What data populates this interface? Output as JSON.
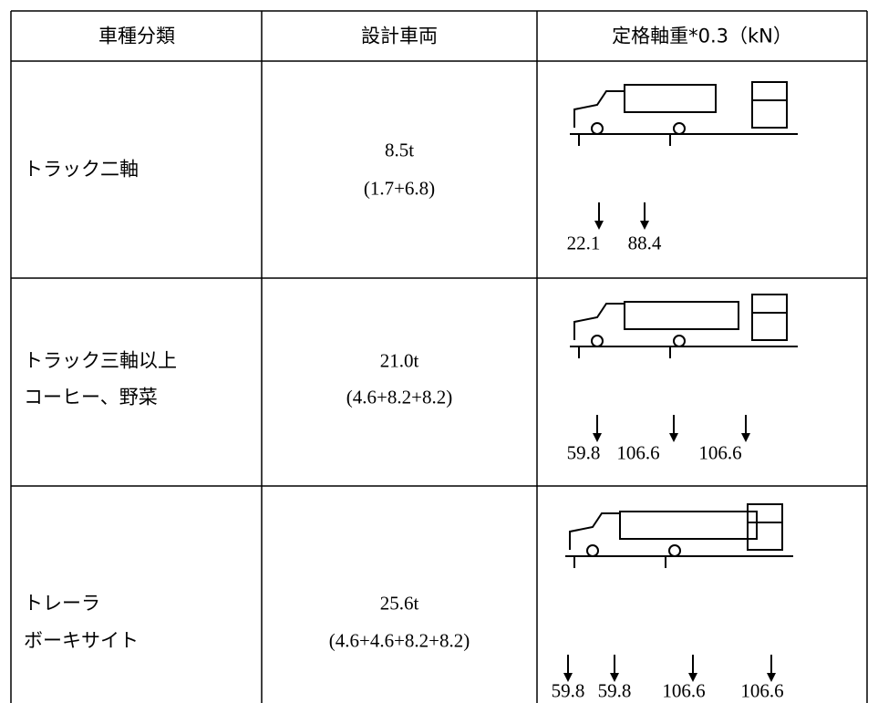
{
  "header": [
    "車種分類",
    "設計車両",
    "定格軸重*0.3（kN）"
  ],
  "rows": [
    {
      "class": [
        "トラック二軸"
      ],
      "vehicle": [
        "8.5t",
        "(1.7+6.8)"
      ],
      "loads": [
        "22.1",
        "88.4"
      ]
    },
    {
      "class": [
        "トラック三軸以上",
        "コーヒー、野菜"
      ],
      "vehicle": [
        "21.0t",
        "(4.6+8.2+8.2)"
      ],
      "loads": [
        "59.8",
        "106.6",
        "106.6"
      ]
    },
    {
      "class": [
        "トレーラ",
        "ボーキサイト"
      ],
      "vehicle": [
        "25.6t",
        "(4.6+4.6+8.2+8.2)"
      ],
      "loads": [
        "59.8",
        "59.8",
        "106.6",
        "106.6"
      ]
    }
  ]
}
